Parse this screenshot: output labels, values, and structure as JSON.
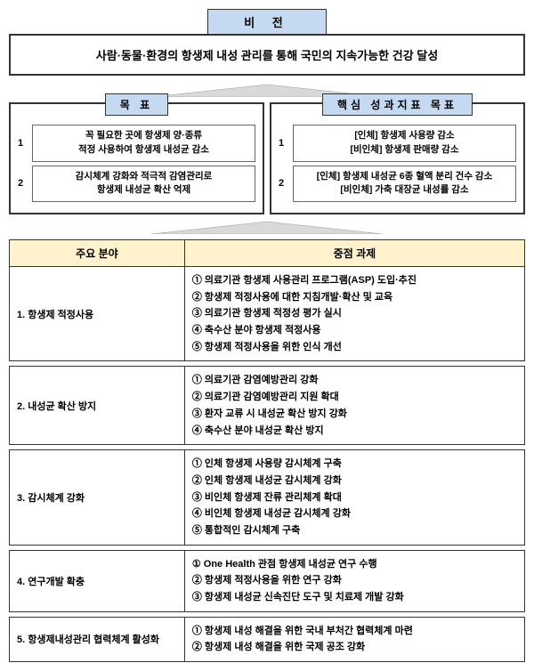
{
  "vision": {
    "label": "비   전",
    "text": "사람·동물·환경의 항생제 내성 관리를 통해 국민의 지속가능한 건강 달성"
  },
  "goals": {
    "left": {
      "label": "목   표",
      "items": [
        {
          "num": "1",
          "lines": [
            "꼭 필요한 곳에 항생제 양·종류",
            "적정 사용하여 항생제 내성균 감소"
          ]
        },
        {
          "num": "2",
          "lines": [
            "감시체계 강화와 적극적 감염관리로",
            "항생제 내성균 확산 억제"
          ]
        }
      ]
    },
    "right": {
      "label": "핵심 성과지표 목표",
      "items": [
        {
          "num": "1",
          "lines": [
            "[인체] 항생제 사용량 감소",
            "[비인체] 항생제 판매량 감소"
          ]
        },
        {
          "num": "2",
          "lines": [
            "[인체] 항생제 내성균 6종 혈액 분리 건수 감소",
            "[비인체] 가축 대장균 내성률 감소"
          ]
        }
      ]
    }
  },
  "table": {
    "headers": {
      "field": "주요 분야",
      "task": "중점 과제"
    },
    "rows": [
      {
        "field": "1. 항생제 적정사용",
        "tasks": [
          "① 의료기관 항생제 사용관리 프로그램(ASP) 도입·추진",
          "② 항생제 적정사용에 대한 지침개발·확산 및 교육",
          "③ 의료기관 항생제 적정성 평가 실시",
          "④ 축수산 분야 항생제 적정사용",
          "⑤ 항생제 적정사용을 위한 인식 개선"
        ]
      },
      {
        "field": "2. 내성균 확산 방지",
        "tasks": [
          "① 의료기관 감염예방관리 강화",
          "② 의료기관 감염예방관리 지원 확대",
          "③ 환자 교류 시 내성균 확산 방지 강화",
          "④ 축수산 분야 내성균 확산 방지"
        ]
      },
      {
        "field": "3. 감시체계 강화",
        "tasks": [
          "① 인체 항생제 사용량 감시체계 구축",
          "② 인체 항생제 내성균 감시체계 강화",
          "③ 비인체 항생제 잔류 관리체계 확대",
          "④ 비인체 항생제 내성균 감시체계 강화",
          "⑤ 통합적인 감시체계 구축"
        ]
      },
      {
        "field": "4. 연구개발 확충",
        "tasks": [
          "① One Health 관점 항생제 내성균 연구 수행",
          "② 항생제 적정사용을 위한 연구 강화",
          "③ 항생제 내성균 신속진단 도구 및 치료제 개발 강화"
        ]
      },
      {
        "field": "5. 항생제내성관리 협력체계 활성화",
        "tasks": [
          "① 항생제 내성 해결을 위한 국내 부처간 협력체계 마련",
          "② 항생제 내성 해결을 위한 국제 공조 강화"
        ]
      }
    ]
  },
  "colors": {
    "headerBg": "#c5d9f1",
    "tableHeaderBg": "#fff2cc",
    "border": "#333333",
    "arrowFill": "#d9d9d9"
  }
}
